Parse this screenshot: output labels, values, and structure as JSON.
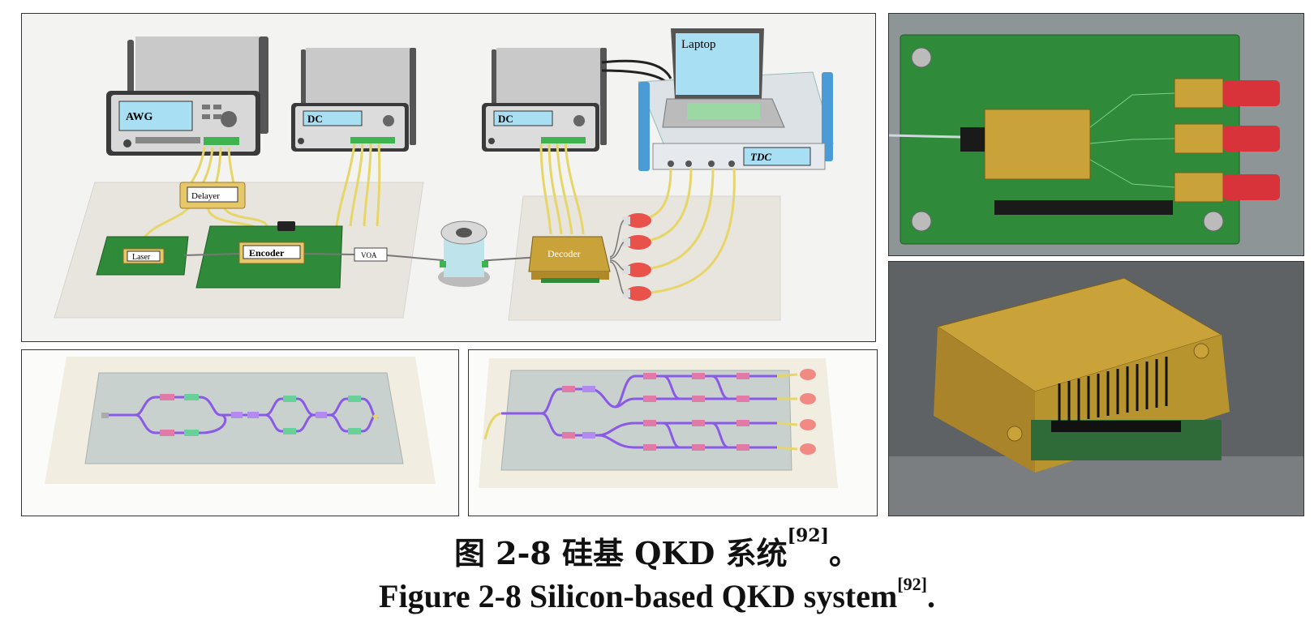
{
  "main_panel": {
    "labels": {
      "awg": "AWG",
      "dc1": "DC",
      "dc2": "DC",
      "laptop": "Laptop",
      "tdc": "TDC",
      "delayer": "Delayer",
      "laser": "Laser",
      "encoder": "Encoder",
      "voa": "VOA",
      "decoder": "Decoder"
    }
  },
  "caption": {
    "cn_text": "图 2-8 硅基 QKD 系统",
    "cn_ref": "[92]",
    "cn_end": "。",
    "en_text": "Figure 2-8 Silicon-based QKD system",
    "en_ref": "[92]",
    "en_end": "."
  },
  "colors": {
    "pcb_green": "#2f8a3a",
    "gold": "#c9a23a",
    "waveguide": "#8a5ae6",
    "fiber": "#e6d66a",
    "detector_red": "#e8524a"
  }
}
